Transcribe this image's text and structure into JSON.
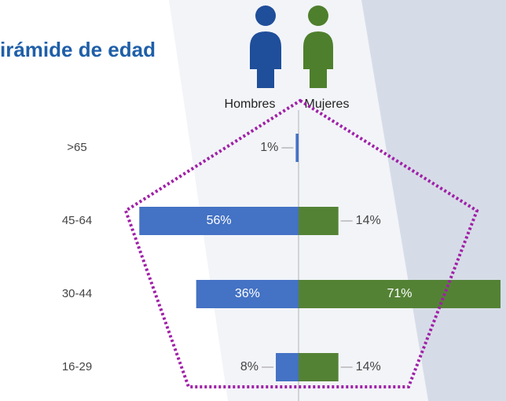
{
  "chart_data": {
    "type": "pyramid",
    "title": "irámide de edad",
    "categories": [
      ">65",
      "45-64",
      "30-44",
      "16-29"
    ],
    "series": [
      {
        "name": "Hombres",
        "color": "#4472c4",
        "values": [
          1,
          56,
          36,
          8
        ],
        "value_labels": [
          "1%",
          "56%",
          "36%",
          "8%"
        ]
      },
      {
        "name": "Mujeres",
        "color": "#548235",
        "values": [
          null,
          14,
          71,
          14
        ],
        "value_labels": [
          null,
          "14%",
          "71%",
          "14%"
        ]
      }
    ]
  }
}
